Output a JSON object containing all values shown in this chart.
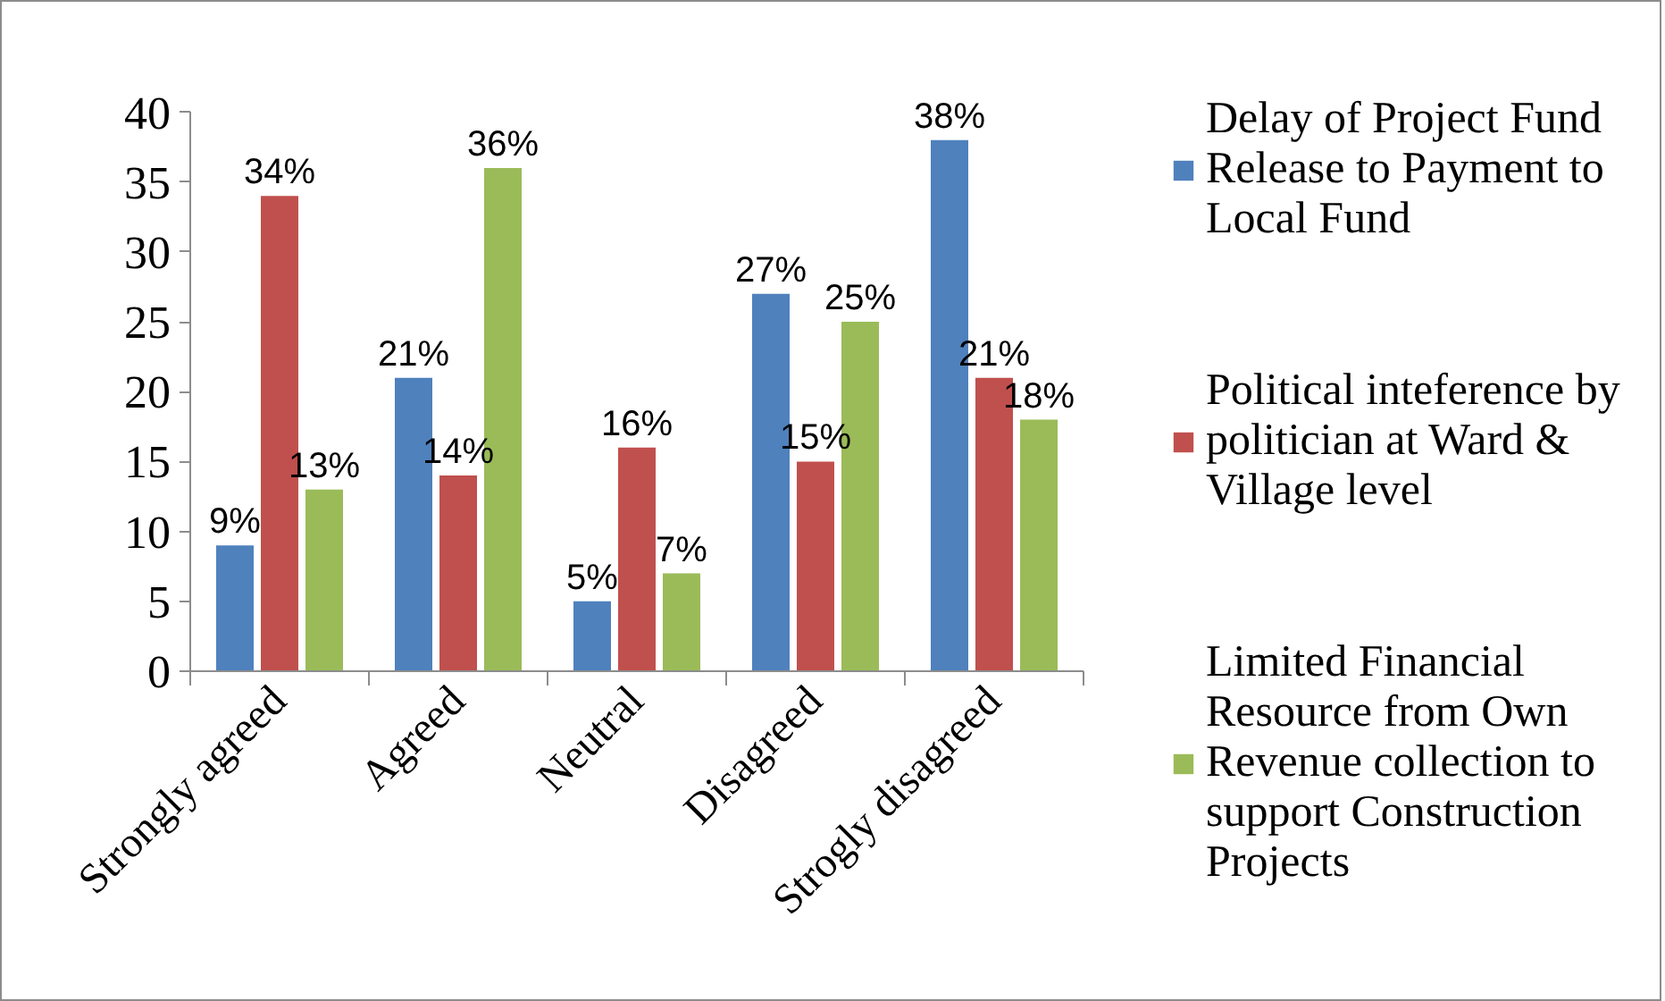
{
  "chart_data": {
    "type": "bar",
    "categories": [
      "Strongly agreed",
      "Agreed",
      "Neutral",
      "Disagreed",
      "Strogly disagreed"
    ],
    "ylim": [
      0,
      40
    ],
    "yticks": [
      0,
      5,
      10,
      15,
      20,
      25,
      30,
      35,
      40
    ],
    "grid": false,
    "legend": "right",
    "series": [
      {
        "name": "Delay of Project Fund Release to Payment to Local Fund",
        "color": "#4f81bd",
        "values": [
          9,
          21,
          5,
          27,
          38
        ],
        "value_labels": [
          "9%",
          "21%",
          "5%",
          "27%",
          "38%"
        ]
      },
      {
        "name": "Political inteference by politician at Ward & Village level",
        "color": "#c0504d",
        "values": [
          34,
          14,
          16,
          15,
          21
        ],
        "value_labels": [
          "34%",
          "14%",
          "16%",
          "15%",
          "21%"
        ]
      },
      {
        "name": "Limited Financial Resource from Own Revenue collection to support Construction Projects",
        "color": "#9bbb59",
        "values": [
          13,
          36,
          7,
          25,
          18
        ],
        "value_labels": [
          "13%",
          "36%",
          "7%",
          "25%",
          "18%"
        ]
      }
    ]
  }
}
